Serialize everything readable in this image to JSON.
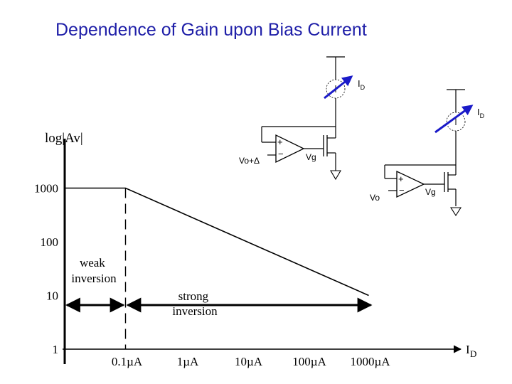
{
  "title": "Dependence of Gain upon Bias Current",
  "chart_data": {
    "type": "line",
    "title": "Dependence of Gain upon Bias Current",
    "ylabel": "log|Av|",
    "xlabel": "ID",
    "x_scale": "log",
    "y_scale": "log",
    "x_ticks": [
      "0.1µA",
      "1µA",
      "10µA",
      "100µA",
      "1000µA"
    ],
    "y_ticks": [
      "1",
      "10",
      "100",
      "1000"
    ],
    "series": [
      {
        "x": [
          0.01,
          0.1,
          1000
        ],
        "y": [
          1000,
          1000,
          10
        ]
      }
    ],
    "regions": [
      {
        "label": "weak\ninversion"
      },
      {
        "label": "strong\ninversion"
      }
    ]
  },
  "circuit": {
    "left": {
      "current_label": "ID",
      "input_label": "Vo+Δ",
      "gate_label": "Vg",
      "plus": "+",
      "minus": "−"
    },
    "right": {
      "current_label": "ID",
      "input_label": "Vo",
      "gate_label": "Vg",
      "plus": "+",
      "minus": "−"
    }
  },
  "colors": {
    "title": "#1f1fa8",
    "arrow": "#1a1ac8",
    "ink": "#000000"
  }
}
